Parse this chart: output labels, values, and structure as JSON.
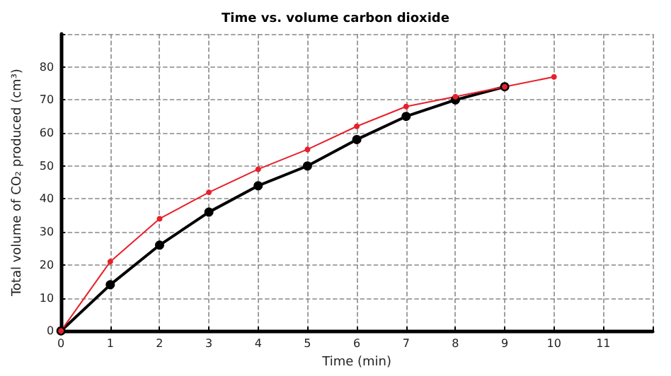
{
  "chart_data": {
    "type": "line",
    "title": "Time vs. volume carbon dioxide",
    "xlabel": "Time (min)",
    "ylabel": "Total volume of CO₂ produced (cm³)",
    "x": [
      0,
      1,
      2,
      3,
      4,
      5,
      6,
      7,
      8,
      9,
      10
    ],
    "series": [
      {
        "color": "#000000",
        "values": [
          0,
          14,
          26,
          36,
          44,
          50,
          58,
          65,
          70,
          74,
          null
        ]
      },
      {
        "color": "#e8202a",
        "values": [
          0,
          21,
          34,
          42,
          49,
          55,
          62,
          68,
          71,
          74,
          77
        ]
      }
    ],
    "xlim": [
      0,
      12
    ],
    "xticks": [
      0,
      1,
      2,
      3,
      4,
      5,
      6,
      7,
      8,
      9,
      10,
      11,
      {
        "value": 12,
        "label": null
      }
    ],
    "ylim": [
      0,
      90
    ],
    "yticks": [
      0,
      10,
      20,
      30,
      40,
      50,
      60,
      70,
      80,
      {
        "value": 90,
        "label": null
      }
    ],
    "grid": true,
    "marker": "circle",
    "line_style": "solid"
  }
}
